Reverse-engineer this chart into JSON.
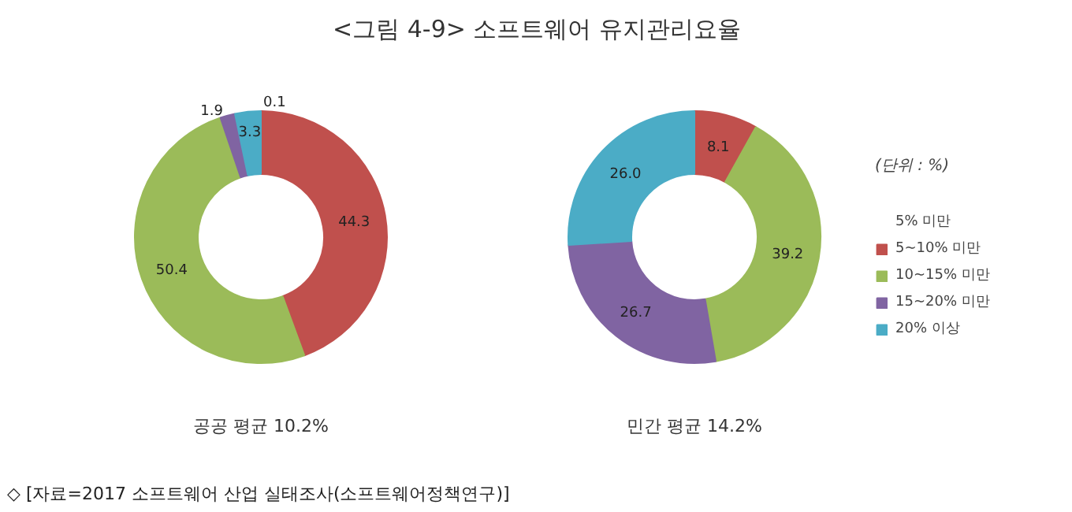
{
  "chart_data": [
    {
      "type": "donut",
      "title": "<그림 4-9> 소프트웨어 유지관리요율",
      "xlabel": "공공 평균 10.2%",
      "values": [
        0.1,
        44.3,
        50.4,
        1.9,
        3.3
      ],
      "value_labels": [
        "0.1",
        "44.3",
        "50.4",
        "1.9",
        "3.3"
      ],
      "colors": [
        "#4f81bd",
        "#c0504d",
        "#9bbb59",
        "#8064a2",
        "#4bacc6"
      ]
    },
    {
      "type": "donut",
      "xlabel": "민간 평균 14.2%",
      "legend_title": "(단위 : %)",
      "categories": [
        "5% 미만",
        "5~10% 미만",
        "10~15% 미만",
        "15~20% 미만",
        "20% 이상"
      ],
      "values": [
        null,
        8.1,
        39.2,
        26.7,
        26.0
      ],
      "value_labels": [
        null,
        "8.1",
        "39.2",
        "26.7",
        "26.0"
      ],
      "colors": [
        "#4f81bd",
        "#c0504d",
        "#9bbb59",
        "#8064a2",
        "#4bacc6"
      ],
      "legend": "right",
      "annotations": [
        "◇ [자료=2017 소프트웨어 산업 실태조사(소프트웨어정책연구)]"
      ]
    }
  ]
}
